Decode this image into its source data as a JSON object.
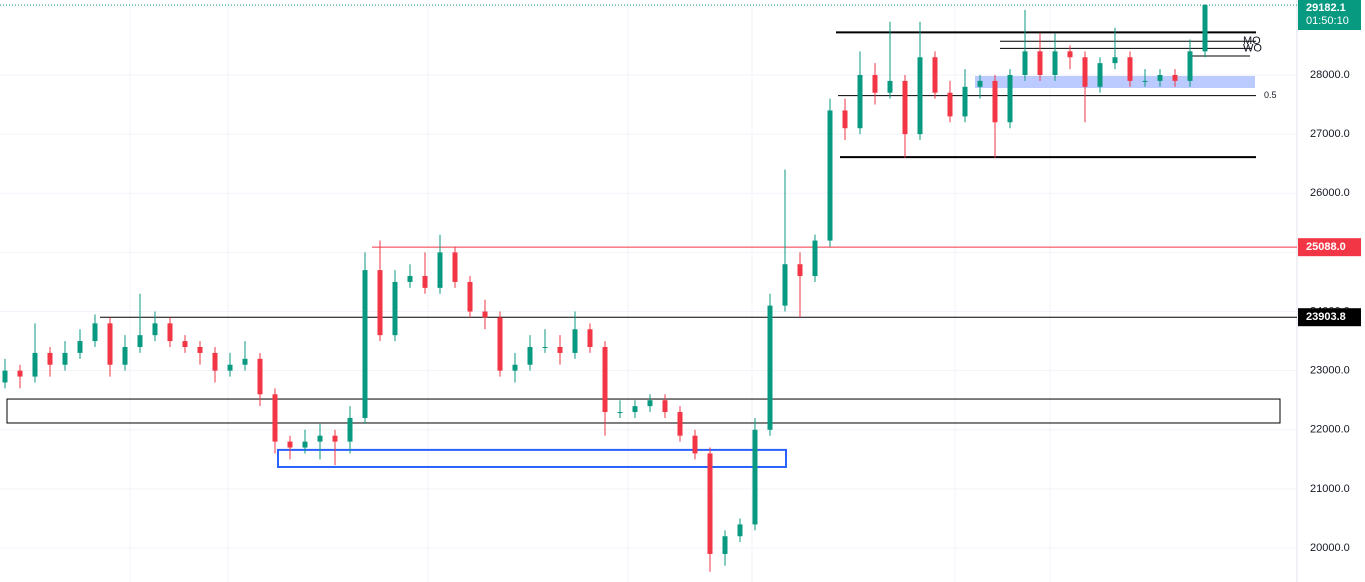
{
  "chart_data": {
    "type": "candlestick",
    "up_color": "#089981",
    "down_color": "#f23645",
    "values": [
      [
        22800,
        23200,
        22700,
        23000
      ],
      [
        23000,
        23100,
        22700,
        22900
      ],
      [
        22900,
        23800,
        22800,
        23300
      ],
      [
        23300,
        23400,
        22900,
        23100
      ],
      [
        23100,
        23500,
        23000,
        23300
      ],
      [
        23300,
        23700,
        23200,
        23500
      ],
      [
        23500,
        23950,
        23400,
        23800
      ],
      [
        23800,
        23900,
        22900,
        23100
      ],
      [
        23100,
        23600,
        23000,
        23400
      ],
      [
        23400,
        24300,
        23300,
        23600
      ],
      [
        23600,
        24000,
        23500,
        23800
      ],
      [
        23800,
        23900,
        23400,
        23500
      ],
      [
        23500,
        23600,
        23300,
        23400
      ],
      [
        23400,
        23500,
        23100,
        23300
      ],
      [
        23300,
        23400,
        22800,
        23000
      ],
      [
        23000,
        23300,
        22900,
        23100
      ],
      [
        23100,
        23500,
        23000,
        23200
      ],
      [
        23200,
        23300,
        22400,
        22600
      ],
      [
        22600,
        22700,
        21600,
        21800
      ],
      [
        21800,
        21900,
        21500,
        21700
      ],
      [
        21700,
        22000,
        21600,
        21800
      ],
      [
        21800,
        22100,
        21500,
        21900
      ],
      [
        21900,
        22000,
        21400,
        21800
      ],
      [
        21800,
        22400,
        21600,
        22200
      ],
      [
        22200,
        25000,
        22100,
        24700
      ],
      [
        24700,
        25200,
        23500,
        23600
      ],
      [
        23600,
        24700,
        23500,
        24500
      ],
      [
        24500,
        24800,
        24400,
        24600
      ],
      [
        24600,
        25000,
        24300,
        24400
      ],
      [
        24400,
        25300,
        24300,
        25000
      ],
      [
        25000,
        25100,
        24400,
        24500
      ],
      [
        24500,
        24600,
        23900,
        24000
      ],
      [
        24000,
        24200,
        23700,
        23900
      ],
      [
        23900,
        24000,
        22900,
        23000
      ],
      [
        23000,
        23300,
        22800,
        23100
      ],
      [
        23100,
        23600,
        23000,
        23400
      ],
      [
        23400,
        23700,
        23300,
        23400
      ],
      [
        23400,
        23600,
        23100,
        23300
      ],
      [
        23300,
        24000,
        23200,
        23700
      ],
      [
        23700,
        23800,
        23300,
        23400
      ],
      [
        23400,
        23500,
        21900,
        22300
      ],
      [
        22300,
        22500,
        22200,
        22300
      ],
      [
        22300,
        22500,
        22200,
        22400
      ],
      [
        22400,
        22600,
        22300,
        22500
      ],
      [
        22500,
        22600,
        22200,
        22300
      ],
      [
        22300,
        22400,
        21800,
        21900
      ],
      [
        21900,
        22000,
        21500,
        21600
      ],
      [
        21600,
        21700,
        19600,
        19900
      ],
      [
        19900,
        20300,
        19700,
        20200
      ],
      [
        20200,
        20500,
        20100,
        20400
      ],
      [
        20400,
        22200,
        20300,
        22000
      ],
      [
        22000,
        24300,
        21900,
        24100
      ],
      [
        24100,
        26400,
        24000,
        24800
      ],
      [
        24800,
        25000,
        23900,
        24600
      ],
      [
        24600,
        25300,
        24500,
        25200
      ],
      [
        25200,
        27600,
        25100,
        27400
      ],
      [
        27400,
        27600,
        26900,
        27100
      ],
      [
        27100,
        28400,
        27000,
        28000
      ],
      [
        28000,
        28200,
        27500,
        27700
      ],
      [
        27700,
        28900,
        27600,
        27900
      ],
      [
        27900,
        28000,
        26600,
        27000
      ],
      [
        27000,
        28900,
        26900,
        28300
      ],
      [
        28300,
        28400,
        27600,
        27700
      ],
      [
        27700,
        27900,
        27200,
        27300
      ],
      [
        27300,
        28100,
        27200,
        27800
      ],
      [
        27800,
        28000,
        27600,
        27900
      ],
      [
        27900,
        28000,
        26600,
        27200
      ],
      [
        27200,
        28100,
        27100,
        28000
      ],
      [
        28000,
        29100,
        27900,
        28400
      ],
      [
        28400,
        28700,
        27900,
        28000
      ],
      [
        28000,
        28700,
        27900,
        28400
      ],
      [
        28400,
        28500,
        28100,
        28300
      ],
      [
        28300,
        28400,
        27200,
        27800
      ],
      [
        27800,
        28300,
        27700,
        28200
      ],
      [
        28200,
        28800,
        28100,
        28300
      ],
      [
        28300,
        28400,
        27800,
        27900
      ],
      [
        27900,
        28100,
        27800,
        27900
      ],
      [
        27900,
        28100,
        27800,
        28000
      ],
      [
        28000,
        28100,
        27800,
        27900
      ],
      [
        27900,
        28600,
        27800,
        28400
      ],
      [
        28400,
        29200,
        28300,
        29182.1
      ]
    ],
    "ylim": [
      19426,
      29268
    ],
    "yticks": [
      {
        "value": 20000,
        "label": "20000.0"
      },
      {
        "value": 21000,
        "label": "21000.0"
      },
      {
        "value": 22000,
        "label": "22000.0"
      },
      {
        "value": 23000,
        "label": "23000.0"
      },
      {
        "value": 24000,
        "label": "24000.0"
      },
      {
        "value": 25000,
        "label": "25000.0"
      },
      {
        "value": 26000,
        "label": "26000.0"
      },
      {
        "value": 27000,
        "label": "27000.0"
      },
      {
        "value": 28000,
        "label": "28000.0"
      }
    ],
    "grid": true,
    "levels": [
      {
        "value": 28720,
        "color": "#000000"
      },
      {
        "value": 26610,
        "color": "#000000"
      },
      {
        "value": 25088,
        "color": "#f23645"
      },
      {
        "value": 23903.8,
        "color": "#000000"
      },
      {
        "value": 27650,
        "color": "#000000",
        "label": "0.5"
      },
      {
        "value": 28570,
        "color": "#000000",
        "label": "MO"
      },
      {
        "value": 28450,
        "color": "#000000",
        "label": "WO"
      },
      {
        "value": 28320,
        "color": "#000000"
      }
    ],
    "zones": [
      {
        "low": 22115,
        "high": 22520,
        "color": "#000000"
      },
      {
        "low": 21371,
        "high": 21660,
        "color": "#2962ff"
      },
      {
        "low": 27780,
        "high": 27983,
        "color": "#bbcbff"
      }
    ],
    "price_labels": [
      {
        "value": 29182.1,
        "label": "29182.1",
        "color": "#089981",
        "countdown": "01:50:10"
      },
      {
        "value": 25088,
        "label": "25088.0",
        "color": "#f23645"
      },
      {
        "value": 23903.8,
        "label": "23903.8",
        "color": "#000000"
      }
    ]
  }
}
